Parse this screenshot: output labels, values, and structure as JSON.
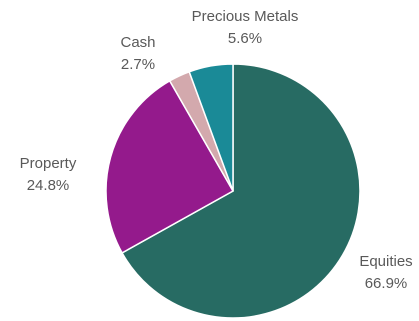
{
  "chart_data": {
    "type": "pie",
    "title": "",
    "slices": [
      {
        "label": "Equities",
        "value": 66.9,
        "value_label": "66.9%",
        "color": "#276B63"
      },
      {
        "label": "Property",
        "value": 24.8,
        "value_label": "24.8%",
        "color": "#941A8C"
      },
      {
        "label": "Cash",
        "value": 2.7,
        "value_label": "2.7%",
        "color": "#D3A9AD"
      },
      {
        "label": "Precious Metals",
        "value": 5.6,
        "value_label": "5.6%",
        "color": "#1A8A97"
      }
    ],
    "start_angle": "12 o'clock",
    "direction": "clockwise",
    "legend": "none",
    "label_placement": "outside"
  }
}
